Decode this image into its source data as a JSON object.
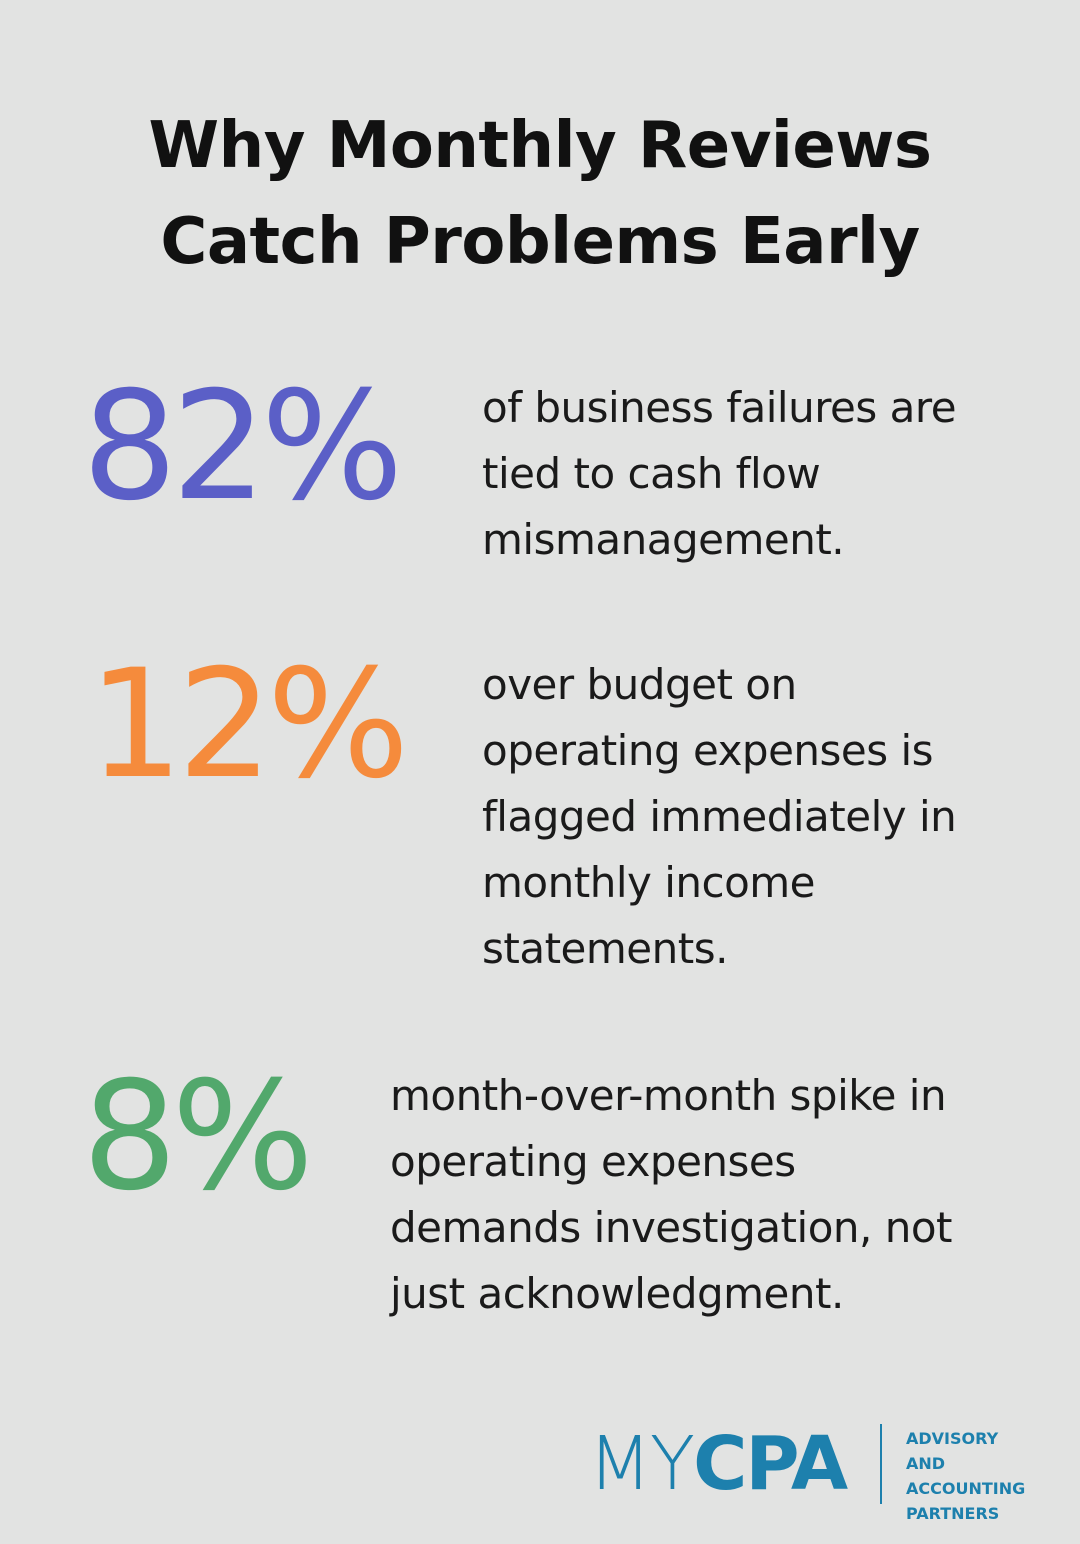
{
  "title": {
    "lines": [
      "Why Monthly Reviews",
      "Catch Problems Early"
    ]
  },
  "stats": [
    {
      "value": "82%",
      "color": "#5b5fc7",
      "lines": [
        "of business failures are",
        "tied to cash flow",
        "mismanagement."
      ]
    },
    {
      "value": "12%",
      "color": "#f58b3c",
      "lines": [
        "over budget on",
        "operating expenses is",
        "flagged immediately in",
        "monthly income",
        "statements."
      ]
    },
    {
      "value": "8%",
      "color": "#52a86c",
      "lines": [
        "month-over-month spike in",
        "operating expenses",
        "demands investigation, not",
        "just acknowledgment."
      ]
    }
  ],
  "logo": {
    "brand_light": "MY",
    "brand_bold": "CPA",
    "tagline": [
      "ADVISORY AND",
      "ACCOUNTING",
      "PARTNERS"
    ]
  }
}
